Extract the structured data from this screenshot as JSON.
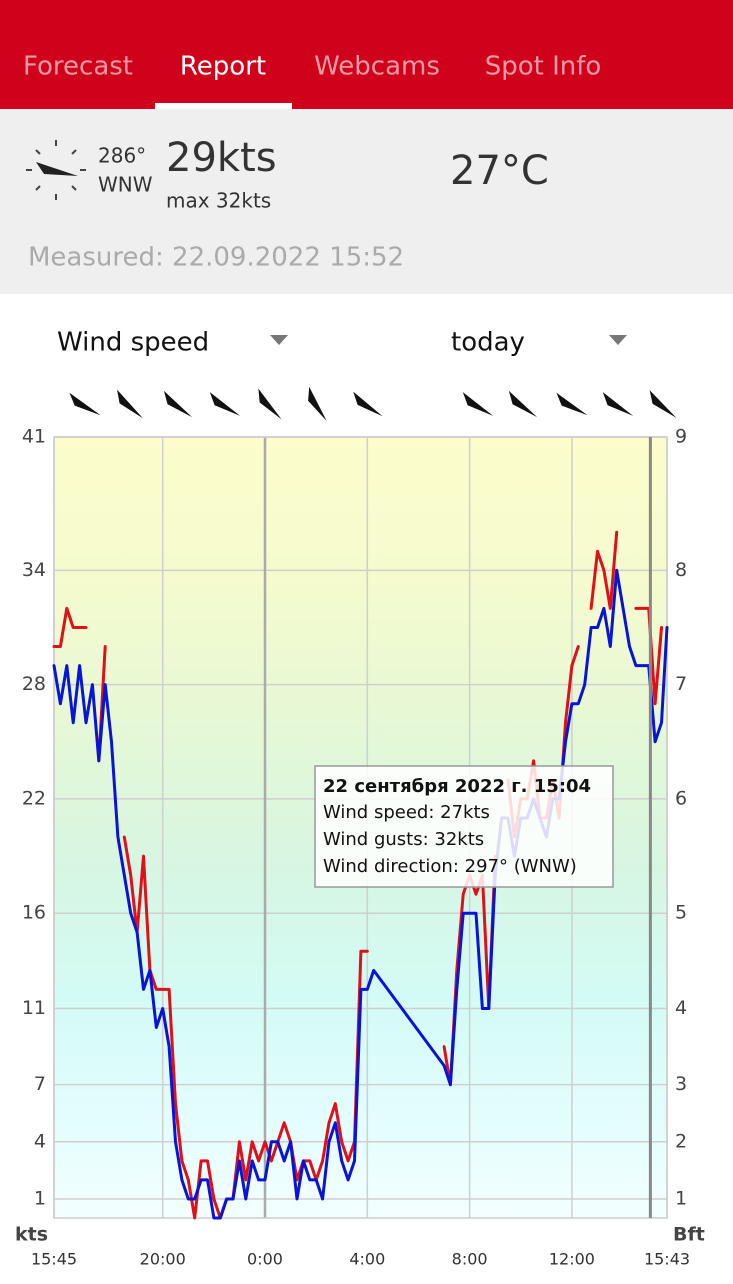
{
  "tabs": [
    "Forecast",
    "Report",
    "Webcams",
    "Spot Info"
  ],
  "current": {
    "direction_deg": "286°",
    "direction": "WNW",
    "speed": "29kts",
    "max": "max 32kts",
    "temperature": "27°C",
    "measured": "Measured: 22.09.2022 15:52"
  },
  "controls": {
    "parameter": "Wind speed",
    "period": "today"
  },
  "chart_data": {
    "type": "line",
    "x": [
      "15:45",
      "16:00",
      "16:15",
      "16:30",
      "16:45",
      "17:00",
      "17:15",
      "17:30",
      "17:45",
      "18:00",
      "18:15",
      "18:30",
      "18:45",
      "19:00",
      "19:15",
      "19:30",
      "19:45",
      "20:00",
      "20:15",
      "20:30",
      "20:45",
      "21:00",
      "21:15",
      "21:30",
      "21:45",
      "22:00",
      "22:15",
      "22:30",
      "22:45",
      "23:00",
      "23:15",
      "23:30",
      "23:45",
      "0:00",
      "0:15",
      "0:30",
      "0:45",
      "1:00",
      "1:15",
      "1:30",
      "1:45",
      "2:00",
      "2:15",
      "2:30",
      "2:45",
      "3:00",
      "3:15",
      "3:30",
      "3:45",
      "4:00",
      "4:15",
      "7:00",
      "7:15",
      "7:30",
      "7:45",
      "8:00",
      "8:15",
      "8:30",
      "8:45",
      "9:00",
      "9:15",
      "9:30",
      "9:45",
      "10:00",
      "10:15",
      "10:30",
      "10:45",
      "11:00",
      "11:15",
      "11:30",
      "11:45",
      "12:00",
      "12:15",
      "12:30",
      "12:45",
      "13:00",
      "13:15",
      "13:30",
      "13:45",
      "14:00",
      "14:15",
      "14:30",
      "14:45",
      "15:00",
      "15:15",
      "15:30",
      "15:43"
    ],
    "series": [
      {
        "color": "#0a14d6",
        "values": [
          29,
          27,
          29,
          26,
          29,
          26,
          28,
          24,
          28,
          25,
          20,
          18,
          16,
          15,
          12,
          13,
          10,
          11,
          9,
          4,
          2,
          1,
          1,
          2,
          2,
          0,
          0,
          1,
          1,
          3,
          1,
          3,
          2,
          2,
          4,
          4,
          3,
          4,
          1,
          3,
          2,
          2,
          1,
          4,
          5,
          3,
          2,
          3,
          12,
          12,
          13,
          8,
          7,
          12,
          16,
          16,
          16,
          11,
          11,
          18,
          21,
          21,
          19,
          21,
          21,
          22,
          21,
          20,
          22,
          22,
          25,
          27,
          27,
          28,
          31,
          31,
          32,
          30,
          34,
          32,
          30,
          29,
          29,
          29,
          25,
          26,
          31
        ]
      },
      {
        "color": "#e0101a",
        "values": [
          30,
          30,
          32,
          31,
          31,
          31,
          null,
          24,
          30,
          null,
          null,
          20,
          18,
          15,
          19,
          13,
          12,
          12,
          12,
          6,
          3,
          2,
          0,
          3,
          3,
          1,
          0,
          1,
          1,
          4,
          2,
          4,
          3,
          4,
          3,
          4,
          5,
          4,
          2,
          3,
          3,
          2,
          3,
          5,
          6,
          4,
          3,
          4,
          14,
          14,
          null,
          9,
          7,
          13,
          17,
          18,
          17,
          18,
          11,
          19,
          null,
          23,
          20,
          22,
          22,
          24,
          21,
          21,
          23,
          21,
          26,
          29,
          30,
          null,
          32,
          35,
          34,
          32,
          36,
          null,
          null,
          32,
          32,
          32,
          27,
          31,
          null
        ]
      }
    ],
    "xlim": [
      "15:45",
      "15:43"
    ],
    "xticks": [
      "15:45",
      "20:00",
      "0:00",
      "4:00",
      "8:00",
      "12:00",
      "15:43"
    ],
    "ylim": [
      0,
      41
    ],
    "yticks": [
      41,
      34,
      28,
      22,
      16,
      11,
      7,
      4,
      1
    ],
    "y_label": "kts",
    "y2_label": "Bft",
    "beaufort_ticks": [
      {
        "kts": 41,
        "bft": 9
      },
      {
        "kts": 34,
        "bft": 8
      },
      {
        "kts": 28,
        "bft": 7
      },
      {
        "kts": 22,
        "bft": 6
      },
      {
        "kts": 16,
        "bft": 5
      },
      {
        "kts": 11,
        "bft": 4
      },
      {
        "kts": 7,
        "bft": 3
      },
      {
        "kts": 4,
        "bft": 2
      },
      {
        "kts": 1,
        "bft": 1
      }
    ],
    "grid": true,
    "tooltip": {
      "title": "22 сентября 2022 г. 15:04",
      "lines": [
        "Wind speed: 27kts",
        "Wind gusts: 32kts",
        "Wind direction: 297° (WNW)"
      ]
    }
  }
}
